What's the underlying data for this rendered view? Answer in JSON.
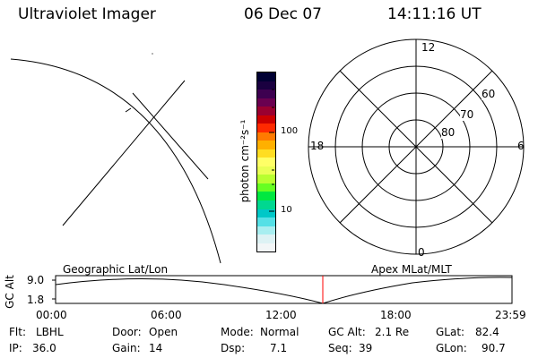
{
  "header": {
    "instrument": "Ultraviolet Imager",
    "date": "06 Dec 07",
    "time": "14:11:16 UT"
  },
  "colorbar": {
    "label": "photon cm⁻²s⁻¹",
    "ticks": [
      "100",
      "10"
    ],
    "colors": [
      "#000033",
      "#1a0040",
      "#3d0050",
      "#6a0050",
      "#9a0030",
      "#cc0000",
      "#ff2a00",
      "#ff7a00",
      "#ffb000",
      "#ffdd22",
      "#ffff66",
      "#eaff55",
      "#b8ff30",
      "#66ff22",
      "#00e840",
      "#00d890",
      "#00c8c8",
      "#55e0e6",
      "#a8eef0",
      "#ddf2f4",
      "#f2f6f7"
    ]
  },
  "map": {
    "coord_label": "Geographic Lat/Lon"
  },
  "polar": {
    "coord_label": "Apex MLat/MLT",
    "mlt_labels": {
      "top": "12",
      "bottom": "0",
      "left": "18",
      "right": "6"
    },
    "lat_labels": [
      "60",
      "70",
      "80"
    ]
  },
  "altitude_plot": {
    "axis_label": "GC Alt",
    "y_ticks": [
      "9.0",
      "1.8"
    ],
    "x_ticks": [
      "00:00",
      "06:00",
      "12:00",
      "18:00",
      "23:59"
    ]
  },
  "status": {
    "filter": {
      "label": "Flt:",
      "value": "LBHL"
    },
    "ip": {
      "label": "IP:",
      "value": "36.0"
    },
    "door": {
      "label": "Door:",
      "value": "Open"
    },
    "gain": {
      "label": "Gain:",
      "value": "14"
    },
    "mode": {
      "label": "Mode:",
      "value": "Normal"
    },
    "dsp": {
      "label": "Dsp:",
      "value": "7.1"
    },
    "gc_alt": {
      "label": "GC Alt:",
      "value": "2.1 Re"
    },
    "seq": {
      "label": "Seq:",
      "value": "39"
    },
    "glat": {
      "label": "GLat:",
      "value": "82.4"
    },
    "glon": {
      "label": "GLon:",
      "value": "90.7"
    }
  }
}
